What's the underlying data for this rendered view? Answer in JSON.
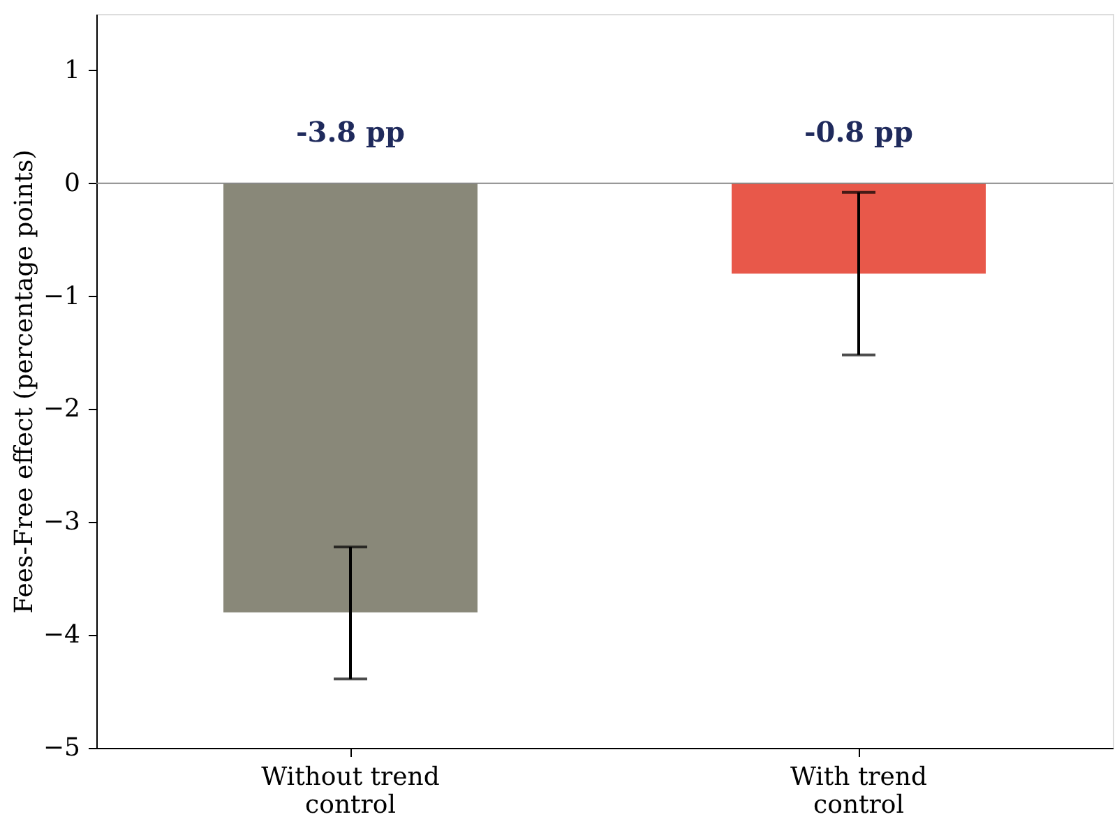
{
  "chart_data": {
    "type": "bar",
    "ylabel": "Fees-Free effect (percentage points)",
    "categories": [
      "Without trend control",
      "With trend control"
    ],
    "values": [
      -3.8,
      -0.8
    ],
    "colors": [
      "#898879",
      "#e8584a"
    ],
    "errors": [
      [
        -4.39,
        -3.22
      ],
      [
        -1.52,
        -0.08
      ]
    ],
    "value_labels": [
      "-3.8 pp",
      "-0.8 pp"
    ],
    "ylim": [
      -5,
      1.5
    ],
    "yticks": [
      {
        "value": -5,
        "label": "−5"
      },
      {
        "value": -4,
        "label": "−4"
      },
      {
        "value": -3,
        "label": "−3"
      },
      {
        "value": -2,
        "label": "−2"
      },
      {
        "value": -1,
        "label": "−1"
      },
      0,
      1
    ],
    "ref_lines": [
      {
        "axis": "y",
        "value": 0,
        "color": "#888888"
      }
    ]
  }
}
